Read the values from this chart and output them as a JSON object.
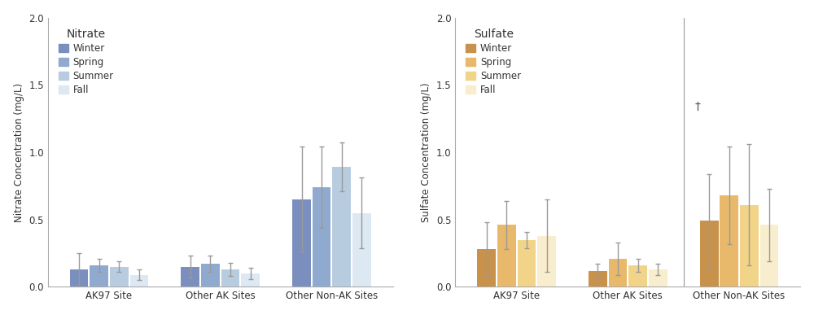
{
  "nitrate": {
    "title": "Nitrate",
    "ylabel": "Nitrate Concentration (mg/L)",
    "groups": [
      "AK97 Site",
      "Other AK Sites",
      "Other Non-AK Sites"
    ],
    "seasons": [
      "Winter",
      "Spring",
      "Summer",
      "Fall"
    ],
    "colors": [
      "#7b8fbf",
      "#90aacf",
      "#b8cce0",
      "#dce8f2"
    ],
    "values": [
      [
        0.13,
        0.16,
        0.15,
        0.09
      ],
      [
        0.15,
        0.17,
        0.13,
        0.1
      ],
      [
        0.65,
        0.74,
        0.89,
        0.55
      ]
    ],
    "errors": [
      [
        0.12,
        0.05,
        0.04,
        0.04
      ],
      [
        0.08,
        0.06,
        0.05,
        0.04
      ],
      [
        0.39,
        0.3,
        0.18,
        0.26
      ]
    ],
    "ylim": [
      0.0,
      2.0
    ],
    "yticks": [
      0.0,
      0.5,
      1.0,
      1.5,
      2.0
    ]
  },
  "sulfate": {
    "title": "Sulfate",
    "ylabel": "Sulfate Concentration (mg/L)",
    "groups": [
      "AK97 Site",
      "Other AK Sites",
      "Other Non-AK Sites"
    ],
    "seasons": [
      "Winter",
      "Spring",
      "Summer",
      "Fall"
    ],
    "colors": [
      "#c8924a",
      "#e8b96a",
      "#f2d488",
      "#f8edcc"
    ],
    "values": [
      [
        0.28,
        0.46,
        0.35,
        0.38
      ],
      [
        0.12,
        0.21,
        0.16,
        0.13
      ],
      [
        0.49,
        0.68,
        0.61,
        0.46
      ]
    ],
    "errors": [
      [
        0.2,
        0.18,
        0.06,
        0.27
      ],
      [
        0.05,
        0.12,
        0.05,
        0.04
      ],
      [
        0.35,
        0.36,
        0.45,
        0.27
      ]
    ],
    "ylim": [
      0.0,
      2.0
    ],
    "yticks": [
      0.0,
      0.5,
      1.0,
      1.5,
      2.0
    ]
  },
  "bar_width": 0.18,
  "figsize": [
    10.0,
    3.87
  ],
  "dpi": 100,
  "background_color": "#ffffff",
  "edge_color": "none",
  "error_color": "#999999",
  "error_linewidth": 1.0,
  "error_capsize": 2,
  "legend_fontsize": 8.5,
  "legend_title_fontsize": 10,
  "axis_fontsize": 8.5,
  "tick_fontsize": 8.5,
  "spine_color": "#aaaaaa",
  "label_color": "#333333",
  "tick_color": "#333333"
}
